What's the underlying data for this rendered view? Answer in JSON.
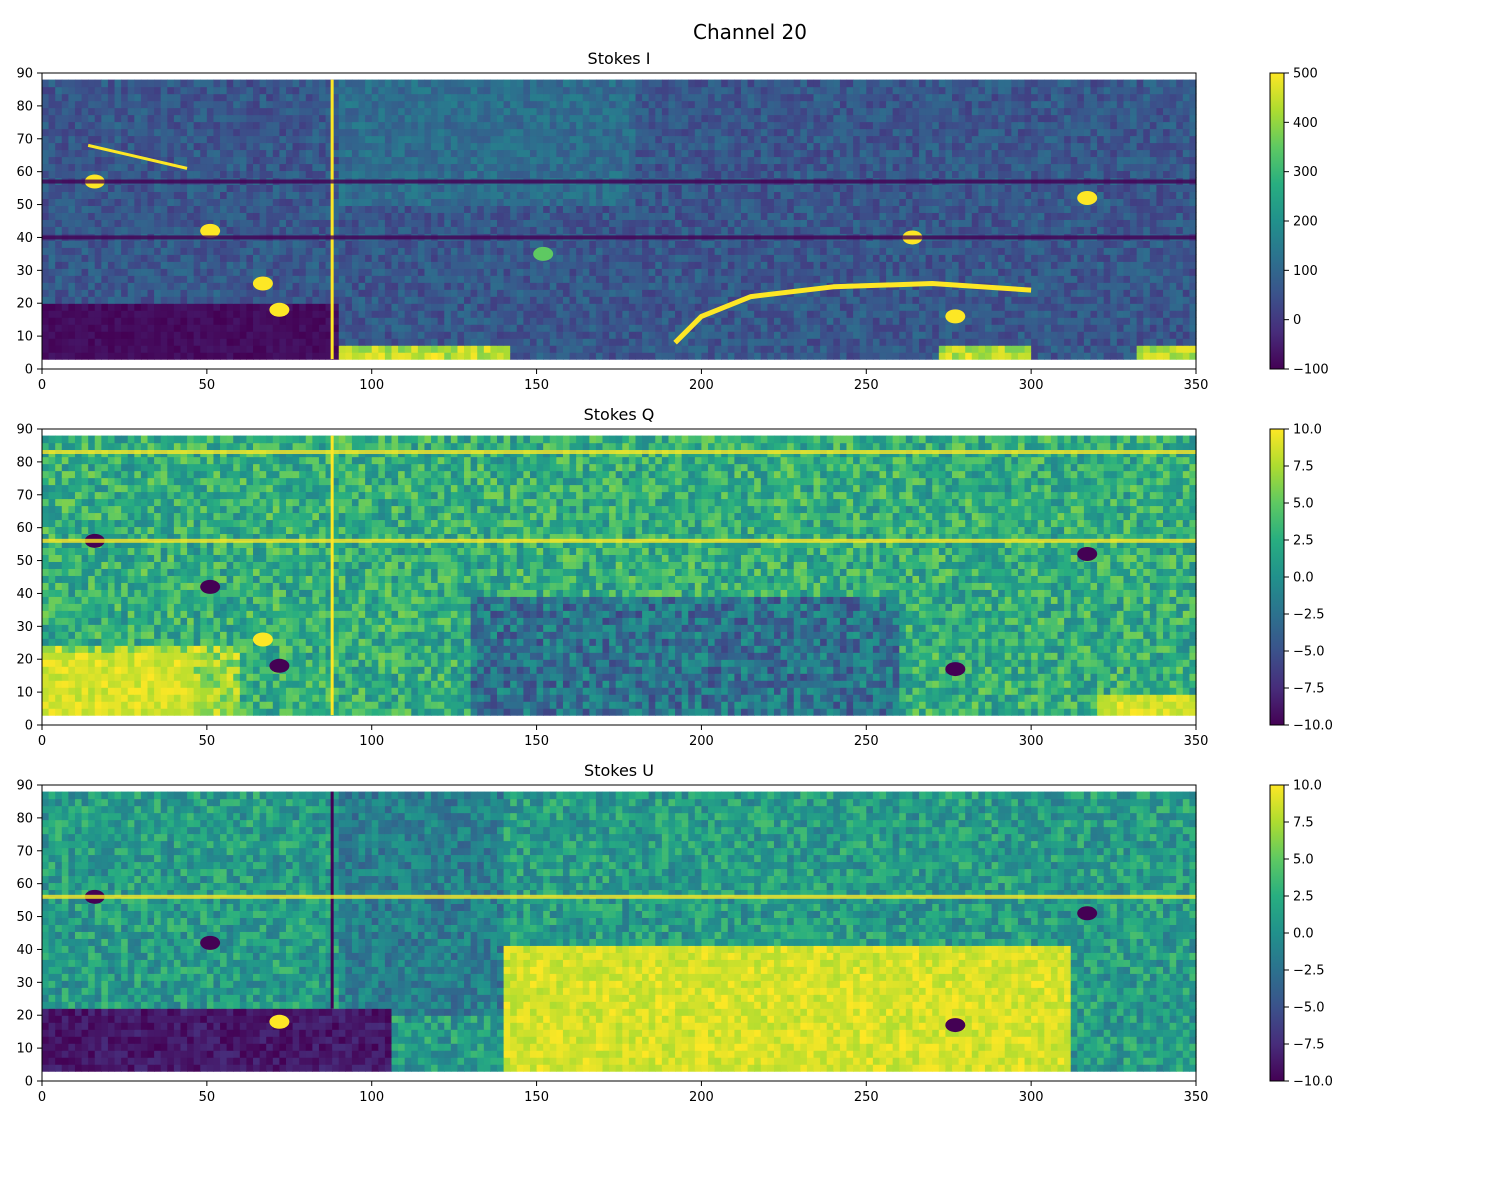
{
  "figure_title": "Channel 20",
  "chart_data": [
    {
      "type": "heatmap",
      "title": "Stokes I",
      "xlabel": "",
      "ylabel": "",
      "xlim": [
        0,
        350
      ],
      "ylim": [
        0,
        90
      ],
      "data_y_range": [
        3,
        88
      ],
      "x_ticks": [
        0,
        50,
        100,
        150,
        200,
        250,
        300,
        350
      ],
      "y_ticks": [
        0,
        10,
        20,
        30,
        40,
        50,
        60,
        70,
        80,
        90
      ],
      "colormap": "viridis",
      "color_range": [
        -100,
        500
      ],
      "colorbar_ticks": [
        "500",
        "400",
        "300",
        "200",
        "100",
        "0",
        "−100"
      ],
      "colorbar_tick_values": [
        500,
        400,
        300,
        200,
        100,
        0,
        -100
      ],
      "features": [
        {
          "kind": "blob",
          "x": 16,
          "y": 57,
          "value": 500
        },
        {
          "kind": "blob",
          "x": 51,
          "y": 42,
          "value": 500
        },
        {
          "kind": "blob",
          "x": 67,
          "y": 26,
          "value": 500
        },
        {
          "kind": "blob",
          "x": 72,
          "y": 18,
          "value": 500
        },
        {
          "kind": "blob",
          "x": 317,
          "y": 52,
          "value": 500
        },
        {
          "kind": "blob",
          "x": 264,
          "y": 40,
          "value": 500
        },
        {
          "kind": "blob",
          "x": 152,
          "y": 35,
          "value": 350
        },
        {
          "kind": "blob",
          "x": 277,
          "y": 16,
          "value": 500
        },
        {
          "kind": "arc",
          "x": [
            192,
            200,
            215,
            240,
            270,
            300
          ],
          "y": [
            8,
            16,
            22,
            25,
            26,
            24
          ],
          "value": 500
        },
        {
          "kind": "streak",
          "x": [
            14,
            44
          ],
          "y": [
            68,
            61
          ],
          "value": 500
        },
        {
          "kind": "bright_base",
          "x": [
            90,
            140
          ],
          "y": [
            3,
            7
          ],
          "value": 500
        },
        {
          "kind": "bright_base",
          "x": [
            272,
            298
          ],
          "y": [
            3,
            7
          ],
          "value": 500
        },
        {
          "kind": "bright_base",
          "x": [
            332,
            350
          ],
          "y": [
            3,
            6
          ],
          "value": 500
        },
        {
          "kind": "vertical_edge",
          "x": 88,
          "y": [
            3,
            88
          ],
          "value": 500
        },
        {
          "kind": "horizontal_band",
          "y": 57,
          "value": -100
        },
        {
          "kind": "horizontal_band",
          "y": 40,
          "value": -100
        }
      ]
    },
    {
      "type": "heatmap",
      "title": "Stokes Q",
      "xlabel": "",
      "ylabel": "",
      "xlim": [
        0,
        350
      ],
      "ylim": [
        0,
        90
      ],
      "data_y_range": [
        3,
        88
      ],
      "x_ticks": [
        0,
        50,
        100,
        150,
        200,
        250,
        300,
        350
      ],
      "y_ticks": [
        0,
        10,
        20,
        30,
        40,
        50,
        60,
        70,
        80,
        90
      ],
      "colormap": "viridis",
      "color_range": [
        -10,
        10
      ],
      "colorbar_ticks": [
        "10.0",
        "7.5",
        "5.0",
        "2.5",
        "0.0",
        "−2.5",
        "−5.0",
        "−7.5",
        "−10.0"
      ],
      "colorbar_tick_values": [
        10,
        7.5,
        5,
        2.5,
        0,
        -2.5,
        -5,
        -7.5,
        -10
      ],
      "features": [
        {
          "kind": "blob",
          "x": 16,
          "y": 56,
          "value": -10
        },
        {
          "kind": "blob",
          "x": 51,
          "y": 42,
          "value": -10
        },
        {
          "kind": "blob",
          "x": 67,
          "y": 26,
          "value": 10
        },
        {
          "kind": "blob",
          "x": 72,
          "y": 18,
          "value": -10
        },
        {
          "kind": "blob",
          "x": 317,
          "y": 52,
          "value": -10
        },
        {
          "kind": "blob",
          "x": 277,
          "y": 17,
          "value": -10
        },
        {
          "kind": "bright_base",
          "x": [
            0,
            45
          ],
          "y": [
            3,
            20
          ],
          "value": 10
        },
        {
          "kind": "bright_base",
          "x": [
            320,
            350
          ],
          "y": [
            3,
            8
          ],
          "value": 10
        },
        {
          "kind": "vertical_edge",
          "x": 88,
          "y": [
            3,
            88
          ],
          "value": 10
        },
        {
          "kind": "horizontal_band",
          "y": 56,
          "value": 10
        },
        {
          "kind": "horizontal_band",
          "y": 83,
          "value": 10
        }
      ]
    },
    {
      "type": "heatmap",
      "title": "Stokes U",
      "xlabel": "",
      "ylabel": "",
      "xlim": [
        0,
        350
      ],
      "ylim": [
        0,
        90
      ],
      "data_y_range": [
        3,
        88
      ],
      "x_ticks": [
        0,
        50,
        100,
        150,
        200,
        250,
        300,
        350
      ],
      "y_ticks": [
        0,
        10,
        20,
        30,
        40,
        50,
        60,
        70,
        80,
        90
      ],
      "colormap": "viridis",
      "color_range": [
        -10,
        10
      ],
      "colorbar_ticks": [
        "10.0",
        "7.5",
        "5.0",
        "2.5",
        "0.0",
        "−2.5",
        "−5.0",
        "−7.5",
        "−10.0"
      ],
      "colorbar_tick_values": [
        10,
        7.5,
        5,
        2.5,
        0,
        -2.5,
        -5,
        -7.5,
        -10
      ],
      "features": [
        {
          "kind": "blob",
          "x": 16,
          "y": 56,
          "value": -10
        },
        {
          "kind": "blob",
          "x": 51,
          "y": 42,
          "value": -10
        },
        {
          "kind": "blob",
          "x": 72,
          "y": 18,
          "value": 10
        },
        {
          "kind": "blob",
          "x": 317,
          "y": 51,
          "value": -10
        },
        {
          "kind": "blob",
          "x": 277,
          "y": 17,
          "value": -10
        },
        {
          "kind": "dark_region",
          "x": [
            0,
            105
          ],
          "y": [
            3,
            22
          ],
          "value": -10
        },
        {
          "kind": "bright_region",
          "x": [
            140,
            310
          ],
          "y": [
            3,
            40
          ],
          "value": 10
        },
        {
          "kind": "vertical_edge",
          "x": 88,
          "y": [
            22,
            88
          ],
          "value": -10
        },
        {
          "kind": "horizontal_band",
          "y": 56,
          "value": 10
        }
      ]
    }
  ]
}
